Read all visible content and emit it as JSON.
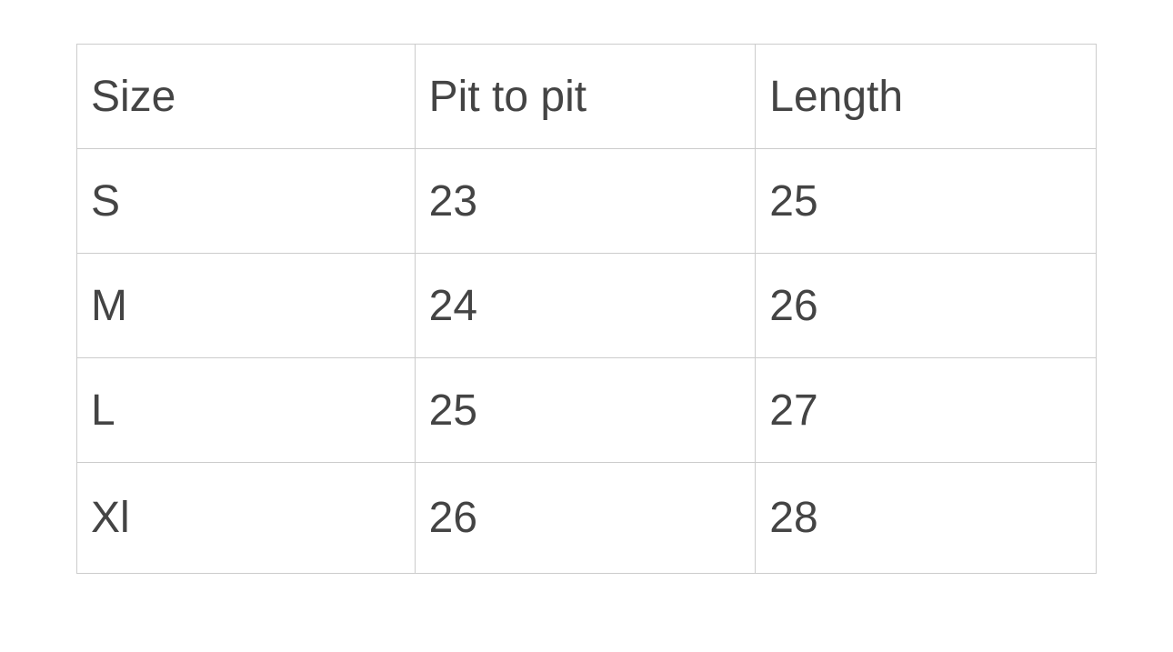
{
  "table": {
    "headers": [
      "Size",
      "Pit to pit",
      "Length"
    ],
    "rows": [
      [
        "S",
        "23",
        "25"
      ],
      [
        "M",
        "24",
        "26"
      ],
      [
        "L",
        "25",
        "27"
      ],
      [
        "Xl",
        "26",
        "28"
      ]
    ]
  }
}
